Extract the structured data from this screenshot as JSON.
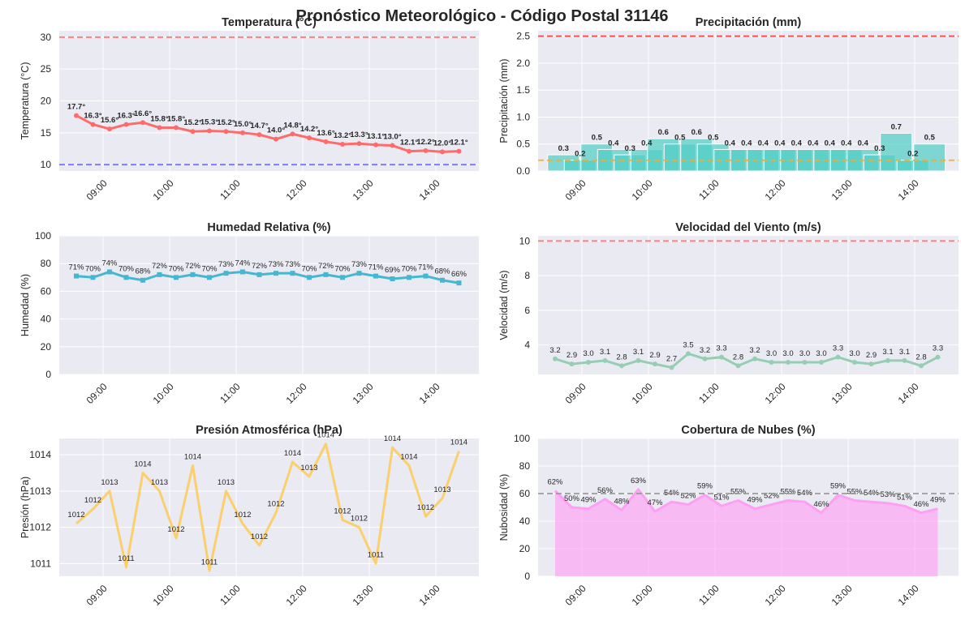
{
  "figure_title": "Pronóstico Meteorológico - Código Postal 31146",
  "chart_data": [
    {
      "id": "temp",
      "type": "line",
      "title": "Temperatura (°C)",
      "ylabel": "Temperatura (°C)",
      "ylim": [
        9,
        31
      ],
      "yticks": [
        10,
        15,
        20,
        25,
        30
      ],
      "color": "#ff6b6b",
      "values": [
        17.7,
        16.3,
        15.6,
        16.3,
        16.6,
        15.8,
        15.8,
        15.2,
        15.3,
        15.2,
        15.0,
        14.7,
        14.0,
        14.8,
        14.2,
        13.6,
        13.2,
        13.3,
        13.1,
        13.0,
        12.1,
        12.2,
        12.0,
        12.1
      ],
      "labels": [
        "17.7°",
        "16.3°",
        "15.6°",
        "16.3°",
        "16.6°",
        "15.8°",
        "15.8°",
        "15.2°",
        "15.3°",
        "15.2°",
        "15.0°",
        "14.7°",
        "14.0°",
        "14.8°",
        "14.2°",
        "13.6°",
        "13.2°",
        "13.3°",
        "13.1°",
        "13.0°",
        "12.1°",
        "12.2°",
        "12.0°",
        "12.1°"
      ],
      "hlines": [
        {
          "y": 30,
          "color": "#ff6b6b"
        },
        {
          "y": 10,
          "color": "#6666ff"
        }
      ]
    },
    {
      "id": "precip",
      "type": "bar",
      "title": "Precipitación (mm)",
      "ylabel": "Precipitación (mm)",
      "ylim": [
        0,
        2.6
      ],
      "yticks": [
        0.0,
        0.5,
        1.0,
        1.5,
        2.0,
        2.5
      ],
      "ytick_labels": [
        "0.0",
        "0.5",
        "1.0",
        "1.5",
        "2.0",
        "2.5"
      ],
      "color": "#4ecdc4",
      "values": [
        0.3,
        0.2,
        0.5,
        0.4,
        0.3,
        0.4,
        0.6,
        0.5,
        0.6,
        0.5,
        0.4,
        0.4,
        0.4,
        0.4,
        0.4,
        0.4,
        0.4,
        0.4,
        0.4,
        0.3,
        0.7,
        0.2,
        0.5
      ],
      "labels": [
        "0.3",
        "0.2",
        "0.5",
        "0.4",
        "0.3",
        "0.4",
        "0.6",
        "0.5",
        "0.6",
        "0.5",
        "0.4",
        "0.4",
        "0.4",
        "0.4",
        "0.4",
        "0.4",
        "0.4",
        "0.4",
        "0.4",
        "0.3",
        "0.7",
        "0.2",
        "0.5"
      ],
      "hlines": [
        {
          "y": 2.5,
          "color": "#ff3333"
        },
        {
          "y": 0.2,
          "color": "#ffa726"
        }
      ]
    },
    {
      "id": "hum",
      "type": "line",
      "title": "Humedad Relativa (%)",
      "ylabel": "Humedad (%)",
      "ylim": [
        0,
        100
      ],
      "yticks": [
        0,
        20,
        40,
        60,
        80,
        100
      ],
      "color": "#45b7d1",
      "values": [
        71,
        70,
        74,
        70,
        68,
        72,
        70,
        72,
        70,
        73,
        74,
        72,
        73,
        73,
        70,
        72,
        70,
        73,
        71,
        69,
        70,
        71,
        68,
        66
      ],
      "labels": [
        "71%",
        "70%",
        "74%",
        "70%",
        "68%",
        "72%",
        "70%",
        "72%",
        "70%",
        "73%",
        "74%",
        "72%",
        "73%",
        "73%",
        "70%",
        "72%",
        "70%",
        "73%",
        "71%",
        "69%",
        "70%",
        "71%",
        "68%",
        "66%"
      ],
      "hlines": []
    },
    {
      "id": "wind",
      "type": "line",
      "title": "Velocidad del Viento (m/s)",
      "ylabel": "Velocidad (m/s)",
      "ylim": [
        2.3,
        10.3
      ],
      "yticks": [
        4,
        6,
        8,
        10
      ],
      "color": "#96ceb4",
      "values": [
        3.2,
        2.9,
        3.0,
        3.1,
        2.8,
        3.1,
        2.9,
        2.7,
        3.5,
        3.2,
        3.3,
        2.8,
        3.2,
        3.0,
        3.0,
        3.0,
        3.0,
        3.3,
        3.0,
        2.9,
        3.1,
        3.1,
        2.8,
        3.3
      ],
      "labels": [
        "3.2",
        "2.9",
        "3.0",
        "3.1",
        "2.8",
        "3.1",
        "2.9",
        "2.7",
        "3.5",
        "3.2",
        "3.3",
        "2.8",
        "3.2",
        "3.0",
        "3.0",
        "3.0",
        "3.0",
        "3.3",
        "3.0",
        "2.9",
        "3.1",
        "3.1",
        "2.8",
        "3.3"
      ],
      "hlines": [
        {
          "y": 10,
          "color": "#ff6b6b"
        }
      ]
    },
    {
      "id": "pres",
      "type": "line",
      "title": "Presión Atmosférica (hPa)",
      "ylabel": "Presión (hPa)",
      "ylim": [
        1010.65,
        1014.45
      ],
      "yticks": [
        1011,
        1012,
        1013,
        1014
      ],
      "color": "#feca57",
      "values": [
        1012.1,
        1012.5,
        1013.0,
        1010.9,
        1013.5,
        1013.0,
        1011.7,
        1013.7,
        1010.8,
        1013.0,
        1012.1,
        1011.5,
        1012.4,
        1013.8,
        1013.4,
        1014.3,
        1012.2,
        1012.0,
        1011.0,
        1014.2,
        1013.7,
        1012.3,
        1012.8,
        1014.1
      ],
      "labels": [
        "1012",
        "1012",
        "1013",
        "1011",
        "1014",
        "1013",
        "1012",
        "1014",
        "1011",
        "1013",
        "1012",
        "1012",
        "1012",
        "1014",
        "1013",
        "1014",
        "1012",
        "1012",
        "1011",
        "1014",
        "1014",
        "1012",
        "1013",
        "1014"
      ],
      "hlines": []
    },
    {
      "id": "cloud",
      "type": "area",
      "title": "Cobertura de Nubes (%)",
      "ylabel": "Nubosidad (%)",
      "ylim": [
        0,
        100
      ],
      "yticks": [
        0,
        20,
        40,
        60,
        80,
        100
      ],
      "color": "#ff9ff3",
      "values": [
        62,
        50,
        49,
        56,
        48,
        63,
        47,
        54,
        52,
        59,
        51,
        55,
        49,
        52,
        55,
        54,
        46,
        59,
        55,
        54,
        53,
        51,
        46,
        49
      ],
      "labels": [
        "62%",
        "50%",
        "49%",
        "56%",
        "48%",
        "63%",
        "47%",
        "54%",
        "52%",
        "59%",
        "51%",
        "55%",
        "49%",
        "52%",
        "55%",
        "54%",
        "46%",
        "59%",
        "55%",
        "54%",
        "53%",
        "51%",
        "46%",
        "49%"
      ],
      "hlines": [
        {
          "y": 60,
          "color": "#999999"
        }
      ]
    }
  ],
  "x_ticks": [
    "09:00",
    "10:00",
    "11:00",
    "12:00",
    "13:00",
    "14:00"
  ],
  "grid": true
}
